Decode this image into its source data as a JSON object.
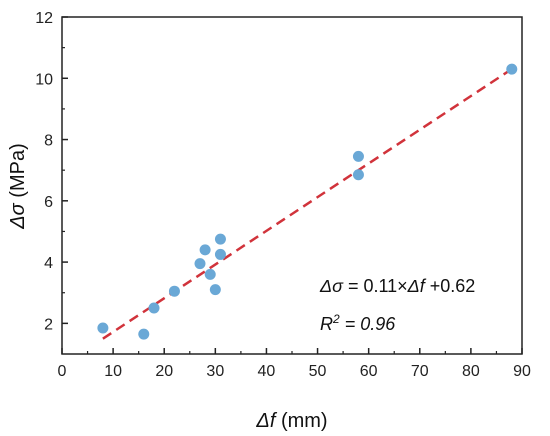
{
  "chart_data": {
    "type": "scatter",
    "title": "",
    "xlabel": {
      "symbol": "Δf",
      "unit": " (mm)"
    },
    "ylabel": {
      "symbol": "Δσ",
      "unit": " (MPa)"
    },
    "xlim": [
      0,
      90
    ],
    "ylim": [
      1,
      12
    ],
    "xticks": [
      0,
      10,
      20,
      30,
      40,
      50,
      60,
      70,
      80,
      90
    ],
    "yticks": [
      2,
      4,
      6,
      8,
      10,
      12
    ],
    "grid": false,
    "points": [
      {
        "x": 8,
        "y": 1.85
      },
      {
        "x": 16,
        "y": 1.65
      },
      {
        "x": 18,
        "y": 2.5
      },
      {
        "x": 22,
        "y": 3.05
      },
      {
        "x": 27,
        "y": 3.95
      },
      {
        "x": 28,
        "y": 4.4
      },
      {
        "x": 29,
        "y": 3.6
      },
      {
        "x": 30,
        "y": 3.1
      },
      {
        "x": 31,
        "y": 4.25
      },
      {
        "x": 31,
        "y": 4.75
      },
      {
        "x": 58,
        "y": 7.45
      },
      {
        "x": 58,
        "y": 6.85
      },
      {
        "x": 88,
        "y": 10.3
      }
    ],
    "fit": {
      "slope": 0.11,
      "intercept": 0.62,
      "x_range": [
        8,
        88
      ]
    },
    "annotations": {
      "equation": {
        "lhs": "Δσ",
        "mid": " = 0.11×",
        "var": "Δf",
        "rhs": " +0.62"
      },
      "r2": {
        "label": "R",
        "sup": "2",
        "value": " = 0.96"
      }
    },
    "colors": {
      "point": "#6aa8d6",
      "fit": "#d1333b",
      "axis": "#222222"
    }
  }
}
